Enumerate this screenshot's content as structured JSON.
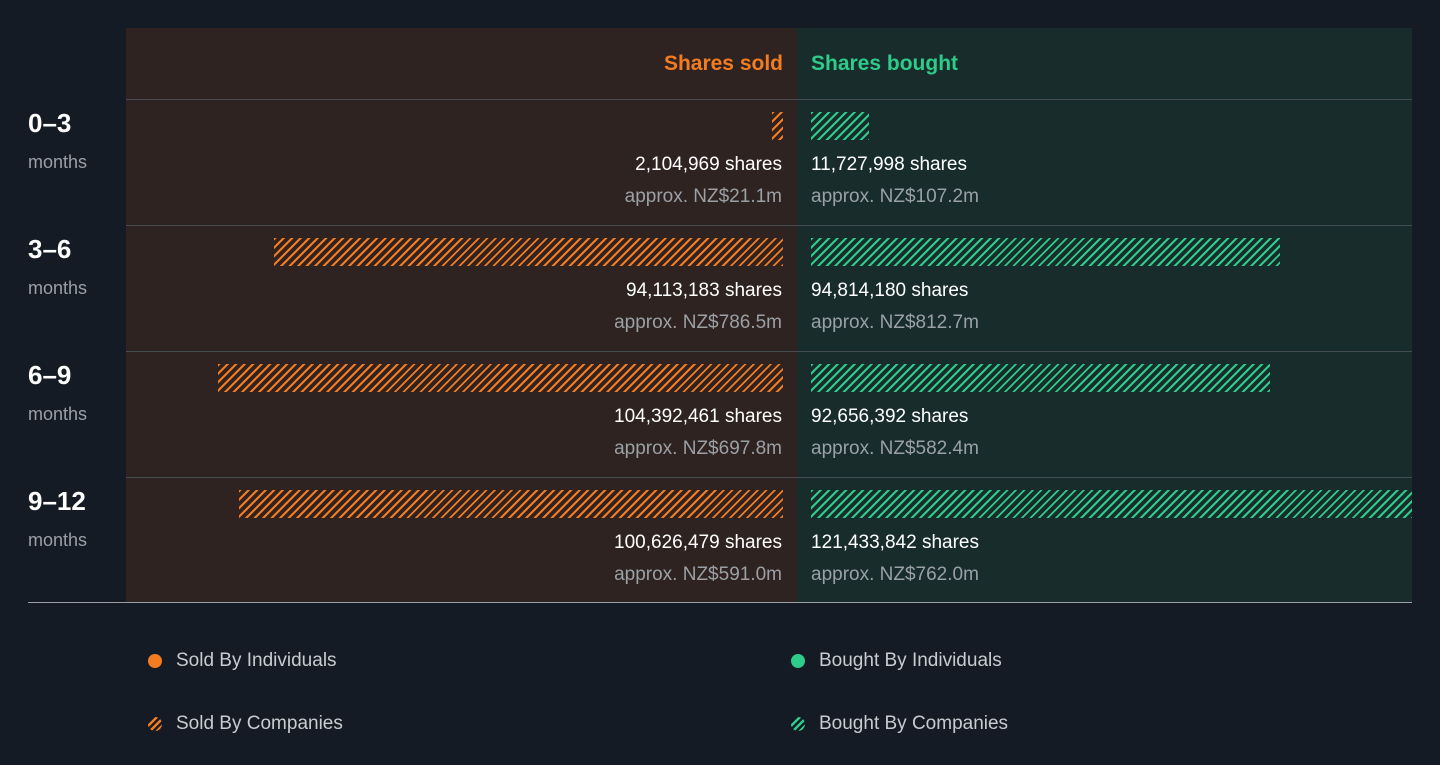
{
  "headers": {
    "sold": "Shares sold",
    "bought": "Shares bought"
  },
  "rows": [
    {
      "period": "0–3",
      "unit": "months",
      "sold_shares": "2,104,969 shares",
      "sold_value": "approx. NZ$21.1m",
      "bought_shares": "11,727,998 shares",
      "bought_value": "approx. NZ$107.2m"
    },
    {
      "period": "3–6",
      "unit": "months",
      "sold_shares": "94,113,183 shares",
      "sold_value": "approx. NZ$786.5m",
      "bought_shares": "94,814,180 shares",
      "bought_value": "approx. NZ$812.7m"
    },
    {
      "period": "6–9",
      "unit": "months",
      "sold_shares": "104,392,461 shares",
      "sold_value": "approx. NZ$697.8m",
      "bought_shares": "92,656,392 shares",
      "bought_value": "approx. NZ$582.4m"
    },
    {
      "period": "9–12",
      "unit": "months",
      "sold_shares": "100,626,479 shares",
      "sold_value": "approx. NZ$591.0m",
      "bought_shares": "121,433,842 shares",
      "bought_value": "approx. NZ$762.0m"
    }
  ],
  "legend": {
    "sold_individuals": "Sold By Individuals",
    "sold_companies": "Sold By Companies",
    "bought_individuals": "Bought By Individuals",
    "bought_companies": "Bought By Companies"
  },
  "colors": {
    "sold": "#f47c20",
    "bought": "#2ecc8a"
  },
  "chart_data": {
    "type": "bar",
    "categories": [
      "0–3 months",
      "3–6 months",
      "6–9 months",
      "9–12 months"
    ],
    "series": [
      {
        "name": "Shares sold",
        "values": [
          2104969,
          94113183,
          104392461,
          100626479
        ]
      },
      {
        "name": "Shares bought",
        "values": [
          11727998,
          94814180,
          92656392,
          121433842
        ]
      }
    ],
    "max_value": 121433842
  }
}
